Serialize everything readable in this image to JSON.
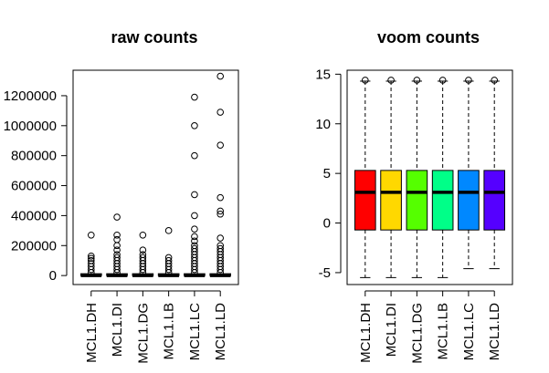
{
  "chart_data": [
    {
      "type": "boxplot",
      "title": "raw counts",
      "xlabel": "",
      "ylabel": "",
      "categories": [
        "MCL1.DH",
        "MCL1.DI",
        "MCL1.DG",
        "MCL1.LB",
        "MCL1.LC",
        "MCL1.LD"
      ],
      "yticks": [
        0,
        200000,
        400000,
        600000,
        800000,
        1000000,
        1200000
      ],
      "ylim": [
        -60000,
        1370000
      ],
      "box_color": "#ffffff",
      "series": [
        {
          "median": 0,
          "q1": 0,
          "q3": 2000,
          "whisker_low": 0,
          "whisker_high": 5000,
          "outliers": [
            20000,
            40000,
            60000,
            80000,
            100000,
            115000,
            130000,
            270000
          ]
        },
        {
          "median": 0,
          "q1": 0,
          "q3": 2000,
          "whisker_low": 0,
          "whisker_high": 5000,
          "outliers": [
            20000,
            40000,
            60000,
            80000,
            100000,
            120000,
            140000,
            170000,
            200000,
            240000,
            270000,
            390000
          ]
        },
        {
          "median": 0,
          "q1": 0,
          "q3": 2000,
          "whisker_low": 0,
          "whisker_high": 5000,
          "outliers": [
            20000,
            40000,
            60000,
            80000,
            100000,
            120000,
            140000,
            170000,
            270000
          ]
        },
        {
          "median": 0,
          "q1": 0,
          "q3": 2000,
          "whisker_low": 0,
          "whisker_high": 5000,
          "outliers": [
            20000,
            40000,
            60000,
            80000,
            100000,
            120000,
            300000
          ]
        },
        {
          "median": 0,
          "q1": 0,
          "q3": 2000,
          "whisker_low": 0,
          "whisker_high": 5000,
          "outliers": [
            20000,
            40000,
            60000,
            80000,
            100000,
            120000,
            140000,
            160000,
            180000,
            200000,
            230000,
            260000,
            310000,
            400000,
            540000,
            800000,
            1000000,
            1190000
          ]
        },
        {
          "median": 0,
          "q1": 0,
          "q3": 2000,
          "whisker_low": 0,
          "whisker_high": 5000,
          "outliers": [
            20000,
            40000,
            60000,
            80000,
            100000,
            120000,
            140000,
            160000,
            180000,
            200000,
            250000,
            410000,
            430000,
            520000,
            870000,
            1090000,
            1330000
          ]
        }
      ]
    },
    {
      "type": "boxplot",
      "title": "voom counts",
      "xlabel": "",
      "ylabel": "",
      "categories": [
        "MCL1.DH",
        "MCL1.DI",
        "MCL1.DG",
        "MCL1.LB",
        "MCL1.LC",
        "MCL1.LD"
      ],
      "yticks": [
        -5,
        0,
        5,
        10,
        15
      ],
      "ylim": [
        -6.2,
        15.4
      ],
      "colors": [
        "#ff0000",
        "#ffd800",
        "#55ff00",
        "#00ff88",
        "#0088ff",
        "#5500ff"
      ],
      "series": [
        {
          "median": 3.1,
          "q1": -0.7,
          "q3": 5.3,
          "whisker_low": -5.5,
          "whisker_high": 14.3,
          "outliers": [
            14.4
          ]
        },
        {
          "median": 3.1,
          "q1": -0.7,
          "q3": 5.3,
          "whisker_low": -5.5,
          "whisker_high": 14.3,
          "outliers": [
            14.4
          ]
        },
        {
          "median": 3.1,
          "q1": -0.7,
          "q3": 5.3,
          "whisker_low": -5.5,
          "whisker_high": 14.3,
          "outliers": [
            14.4
          ]
        },
        {
          "median": 3.1,
          "q1": -0.7,
          "q3": 5.3,
          "whisker_low": -5.5,
          "whisker_high": 14.3,
          "outliers": [
            14.4
          ]
        },
        {
          "median": 3.1,
          "q1": -0.7,
          "q3": 5.3,
          "whisker_low": -4.6,
          "whisker_high": 14.3,
          "outliers": [
            14.4
          ]
        },
        {
          "median": 3.1,
          "q1": -0.7,
          "q3": 5.3,
          "whisker_low": -4.6,
          "whisker_high": 14.3,
          "outliers": [
            14.4
          ]
        }
      ]
    }
  ]
}
